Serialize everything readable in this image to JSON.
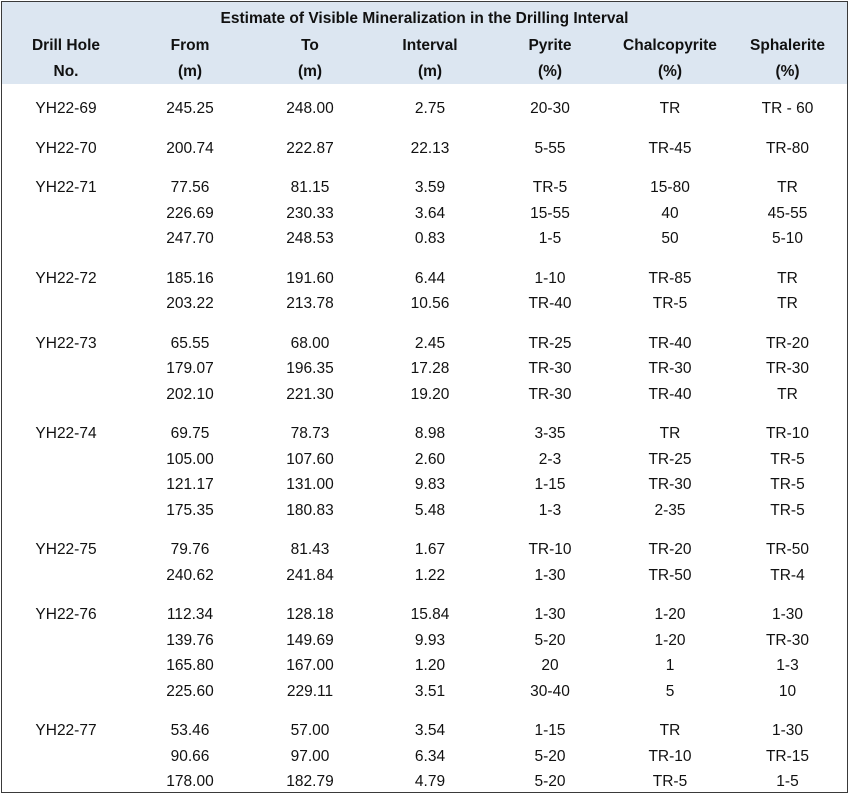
{
  "table": {
    "title": "Estimate of Visible Mineralization in the Drilling Interval",
    "columns": [
      {
        "line1": "Drill Hole",
        "line2": "No."
      },
      {
        "line1": "From",
        "line2": "(m)"
      },
      {
        "line1": "To",
        "line2": "(m)"
      },
      {
        "line1": "Interval",
        "line2": "(m)"
      },
      {
        "line1": "Pyrite",
        "line2": "(%)"
      },
      {
        "line1": "Chalcopyrite",
        "line2": "(%)"
      },
      {
        "line1": "Sphalerite",
        "line2": "(%)"
      }
    ],
    "holes": [
      {
        "id": "YH22-69",
        "rows": [
          [
            "245.25",
            "248.00",
            "2.75",
            "20-30",
            "TR",
            "TR - 60"
          ]
        ]
      },
      {
        "id": "YH22-70",
        "rows": [
          [
            "200.74",
            "222.87",
            "22.13",
            "5-55",
            "TR-45",
            "TR-80"
          ]
        ]
      },
      {
        "id": "YH22-71",
        "rows": [
          [
            "77.56",
            "81.15",
            "3.59",
            "TR-5",
            "15-80",
            "TR"
          ],
          [
            "226.69",
            "230.33",
            "3.64",
            "15-55",
            "40",
            "45-55"
          ],
          [
            "247.70",
            "248.53",
            "0.83",
            "1-5",
            "50",
            "5-10"
          ]
        ]
      },
      {
        "id": "YH22-72",
        "rows": [
          [
            "185.16",
            "191.60",
            "6.44",
            "1-10",
            "TR-85",
            "TR"
          ],
          [
            "203.22",
            "213.78",
            "10.56",
            "TR-40",
            "TR-5",
            "TR"
          ]
        ]
      },
      {
        "id": "YH22-73",
        "rows": [
          [
            "65.55",
            "68.00",
            "2.45",
            "TR-25",
            "TR-40",
            "TR-20"
          ],
          [
            "179.07",
            "196.35",
            "17.28",
            "TR-30",
            "TR-30",
            "TR-30"
          ],
          [
            "202.10",
            "221.30",
            "19.20",
            "TR-30",
            "TR-40",
            "TR"
          ]
        ]
      },
      {
        "id": "YH22-74",
        "rows": [
          [
            "69.75",
            "78.73",
            "8.98",
            "3-35",
            "TR",
            "TR-10"
          ],
          [
            "105.00",
            "107.60",
            "2.60",
            "2-3",
            "TR-25",
            "TR-5"
          ],
          [
            "121.17",
            "131.00",
            "9.83",
            "1-15",
            "TR-30",
            "TR-5"
          ],
          [
            "175.35",
            "180.83",
            "5.48",
            "1-3",
            "2-35",
            "TR-5"
          ]
        ]
      },
      {
        "id": "YH22-75",
        "rows": [
          [
            "79.76",
            "81.43",
            "1.67",
            "TR-10",
            "TR-20",
            "TR-50"
          ],
          [
            "240.62",
            "241.84",
            "1.22",
            "1-30",
            "TR-50",
            "TR-4"
          ]
        ]
      },
      {
        "id": "YH22-76",
        "rows": [
          [
            "112.34",
            "128.18",
            "15.84",
            "1-30",
            "1-20",
            "1-30"
          ],
          [
            "139.76",
            "149.69",
            "9.93",
            "5-20",
            "1-20",
            "TR-30"
          ],
          [
            "165.80",
            "167.00",
            "1.20",
            "20",
            "1",
            "1-3"
          ],
          [
            "225.60",
            "229.11",
            "3.51",
            "30-40",
            "5",
            "10"
          ]
        ]
      },
      {
        "id": "YH22-77",
        "rows": [
          [
            "53.46",
            "57.00",
            "3.54",
            "1-15",
            "TR",
            "1-30"
          ],
          [
            "90.66",
            "97.00",
            "6.34",
            "5-20",
            "TR-10",
            "TR-15"
          ],
          [
            "178.00",
            "182.79",
            "4.79",
            "5-20",
            "TR-5",
            "1-5"
          ]
        ]
      }
    ]
  }
}
